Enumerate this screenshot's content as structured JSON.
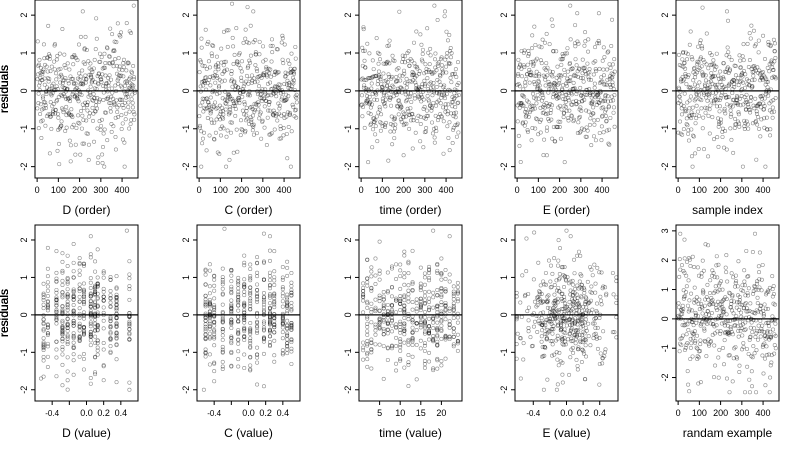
{
  "figure": {
    "ylabel": "residuals",
    "point_color": "#000000",
    "background": "#ffffff"
  },
  "chart_data": [
    {
      "type": "scatter",
      "xlabel": "D (order)",
      "ylabel": "residuals",
      "xlim": [
        -10,
        475
      ],
      "ylim": [
        -2.3,
        2.4
      ],
      "x_ticks": [
        0,
        100,
        200,
        300,
        400
      ],
      "x_tick_labels": [
        "0",
        "100",
        "200",
        "300",
        "400"
      ],
      "y_ticks": [
        -2,
        -1,
        0,
        1,
        2
      ],
      "y_tick_labels": [
        "-2",
        "-1",
        "0",
        "1",
        "2"
      ],
      "reference_line_y": 0,
      "n_points": 460,
      "x_kind": "order",
      "x_range": [
        1,
        460
      ],
      "y_range": [
        -2.0,
        2.3
      ],
      "y_sd": 0.7,
      "notable_points": [
        {
          "x": 215,
          "y": 2.1
        },
        {
          "x": 455,
          "y": 2.25
        },
        {
          "x": 60,
          "y": -1.65
        }
      ]
    },
    {
      "type": "scatter",
      "xlabel": "C (order)",
      "ylabel": "residuals",
      "xlim": [
        -10,
        475
      ],
      "ylim": [
        -2.3,
        2.4
      ],
      "x_ticks": [
        0,
        100,
        200,
        300,
        400
      ],
      "x_tick_labels": [
        "0",
        "100",
        "200",
        "300",
        "400"
      ],
      "y_ticks": [
        -2,
        -1,
        0,
        1,
        2
      ],
      "y_tick_labels": [
        "-2",
        "-1",
        "0",
        "1",
        "2"
      ],
      "reference_line_y": 0,
      "n_points": 460,
      "x_kind": "order",
      "x_range": [
        1,
        460
      ],
      "y_range": [
        -2.0,
        2.3
      ],
      "y_sd": 0.7,
      "notable_points": [
        {
          "x": 155,
          "y": 2.3
        },
        {
          "x": 255,
          "y": 2.1
        },
        {
          "x": 10,
          "y": -2.0
        }
      ]
    },
    {
      "type": "scatter",
      "xlabel": "time (order)",
      "ylabel": "residuals",
      "xlim": [
        -10,
        475
      ],
      "ylim": [
        -2.3,
        2.4
      ],
      "x_ticks": [
        0,
        100,
        200,
        300,
        400
      ],
      "x_tick_labels": [
        "0",
        "100",
        "200",
        "300",
        "400"
      ],
      "y_ticks": [
        -2,
        -1,
        0,
        1,
        2
      ],
      "y_tick_labels": [
        "-2",
        "-1",
        "0",
        "1",
        "2"
      ],
      "reference_line_y": 0,
      "n_points": 460,
      "x_kind": "order",
      "x_range": [
        1,
        460
      ],
      "y_range": [
        -2.0,
        2.3
      ],
      "y_sd": 0.7,
      "notable_points": [
        {
          "x": 345,
          "y": 2.25
        },
        {
          "x": 395,
          "y": 2.1
        },
        {
          "x": 200,
          "y": -1.7
        }
      ]
    },
    {
      "type": "scatter",
      "xlabel": "E (order)",
      "ylabel": "residuals",
      "xlim": [
        -10,
        475
      ],
      "ylim": [
        -2.3,
        2.4
      ],
      "x_ticks": [
        0,
        100,
        200,
        300,
        400
      ],
      "x_tick_labels": [
        "0",
        "100",
        "200",
        "300",
        "400"
      ],
      "y_ticks": [
        -2,
        -1,
        0,
        1,
        2
      ],
      "y_tick_labels": [
        "-2",
        "-1",
        "0",
        "1",
        "2"
      ],
      "reference_line_y": 0,
      "n_points": 460,
      "x_kind": "order",
      "x_range": [
        1,
        460
      ],
      "y_range": [
        -2.0,
        2.3
      ],
      "y_sd": 0.7,
      "notable_points": [
        {
          "x": 250,
          "y": 2.25
        },
        {
          "x": 385,
          "y": 2.05
        },
        {
          "x": 140,
          "y": -1.7
        }
      ]
    },
    {
      "type": "scatter",
      "xlabel": "sample index",
      "ylabel": "residuals",
      "xlim": [
        -10,
        475
      ],
      "ylim": [
        -2.3,
        2.4
      ],
      "x_ticks": [
        0,
        100,
        200,
        300,
        400
      ],
      "x_tick_labels": [
        "0",
        "100",
        "200",
        "300",
        "400"
      ],
      "y_ticks": [
        -2,
        -1,
        0,
        1,
        2
      ],
      "y_tick_labels": [
        "-2",
        "-1",
        "0",
        "1",
        "2"
      ],
      "reference_line_y": 0,
      "n_points": 460,
      "x_kind": "order",
      "x_range": [
        1,
        460
      ],
      "y_range": [
        -2.0,
        2.3
      ],
      "y_sd": 0.7,
      "notable_points": [
        {
          "x": 115,
          "y": 2.2
        },
        {
          "x": 230,
          "y": 2.1
        },
        {
          "x": 80,
          "y": -1.65
        }
      ]
    },
    {
      "type": "scatter",
      "xlabel": "D (value)",
      "ylabel": "residuals",
      "xlim": [
        -0.6,
        0.6
      ],
      "ylim": [
        -2.3,
        2.4
      ],
      "x_ticks": [
        -0.4,
        -0.2,
        0.0,
        0.2,
        0.4
      ],
      "x_tick_labels": [
        "-0.4",
        "",
        "0.0",
        "0.2",
        "0.4"
      ],
      "y_ticks": [
        -2,
        -1,
        0,
        1,
        2
      ],
      "y_tick_labels": [
        "-2",
        "-1",
        "0",
        "1",
        "2"
      ],
      "reference_line_y": 0,
      "n_points": 460,
      "x_kind": "levels",
      "x_levels": [
        -0.5,
        -0.45,
        -0.35,
        -0.28,
        -0.22,
        -0.15,
        -0.08,
        -0.03,
        0.05,
        0.1,
        0.13,
        0.2,
        0.28,
        0.35,
        0.5
      ],
      "y_range": [
        -2.0,
        2.3
      ],
      "y_sd": 0.7,
      "notable_points": [
        {
          "x": 0.05,
          "y": 2.1
        },
        {
          "x": 0.47,
          "y": 2.25
        },
        {
          "x": -0.53,
          "y": -1.7
        }
      ]
    },
    {
      "type": "scatter",
      "xlabel": "C (value)",
      "ylabel": "residuals",
      "xlim": [
        -0.6,
        0.6
      ],
      "ylim": [
        -2.3,
        2.4
      ],
      "x_ticks": [
        -0.4,
        -0.2,
        0.0,
        0.2,
        0.4
      ],
      "x_tick_labels": [
        "-0.4",
        "",
        "0.0",
        "0.2",
        "0.4"
      ],
      "y_ticks": [
        -2,
        -1,
        0,
        1,
        2
      ],
      "y_tick_labels": [
        "-2",
        "-1",
        "0",
        "1",
        "2"
      ],
      "reference_line_y": 0,
      "n_points": 460,
      "x_kind": "levels",
      "x_levels": [
        -0.5,
        -0.45,
        -0.4,
        -0.3,
        -0.2,
        -0.12,
        -0.05,
        0.02,
        0.1,
        0.18,
        0.25,
        0.3,
        0.4,
        0.45,
        0.5
      ],
      "y_range": [
        -2.0,
        2.3
      ],
      "y_sd": 0.7,
      "notable_points": [
        {
          "x": -0.28,
          "y": 2.3
        },
        {
          "x": 0.25,
          "y": 2.1
        },
        {
          "x": -0.52,
          "y": -2.0
        }
      ]
    },
    {
      "type": "scatter",
      "xlabel": "time (value)",
      "ylabel": "residuals",
      "xlim": [
        0,
        25
      ],
      "ylim": [
        -2.3,
        2.4
      ],
      "x_ticks": [
        5,
        10,
        15,
        20
      ],
      "x_tick_labels": [
        "5",
        "10",
        "15",
        "20"
      ],
      "y_ticks": [
        -2,
        -1,
        0,
        1,
        2
      ],
      "y_tick_labels": [
        "-2",
        "-1",
        "0",
        "1",
        "2"
      ],
      "reference_line_y": 0,
      "n_points": 460,
      "x_kind": "levels",
      "x_levels": [
        1,
        2,
        3,
        4,
        5,
        6,
        7,
        8,
        9,
        10,
        11,
        12,
        13,
        14,
        15,
        16,
        17,
        18,
        19,
        20,
        21,
        22,
        23,
        24
      ],
      "y_range": [
        -2.0,
        2.3
      ],
      "y_sd": 0.7,
      "notable_points": [
        {
          "x": 18,
          "y": 2.25
        },
        {
          "x": 22,
          "y": 2.1
        },
        {
          "x": 12,
          "y": -1.9
        }
      ]
    },
    {
      "type": "scatter",
      "xlabel": "E (value)",
      "ylabel": "residuals",
      "xlim": [
        -0.62,
        0.62
      ],
      "ylim": [
        -2.3,
        2.4
      ],
      "x_ticks": [
        -0.4,
        -0.2,
        0.0,
        0.2,
        0.4
      ],
      "x_tick_labels": [
        "-0.4",
        "",
        "0.0",
        "0.2",
        "0.4"
      ],
      "y_ticks": [
        -2,
        -1,
        0,
        1,
        2
      ],
      "y_tick_labels": [
        "-2",
        "-1",
        "0",
        "1",
        "2"
      ],
      "reference_line_y": 0,
      "n_points": 460,
      "x_kind": "continuous",
      "x_range": [
        -0.6,
        0.6
      ],
      "y_range": [
        -2.0,
        2.3
      ],
      "y_sd": 0.7,
      "notable_points": [
        {
          "x": 0.0,
          "y": 2.25
        },
        {
          "x": 0.05,
          "y": 2.1
        },
        {
          "x": -0.55,
          "y": -1.7
        }
      ]
    },
    {
      "type": "scatter",
      "xlabel": "randam example",
      "ylabel": "residuals",
      "xlim": [
        -10,
        475
      ],
      "ylim": [
        -2.8,
        3.2
      ],
      "x_ticks": [
        0,
        100,
        200,
        300,
        400
      ],
      "x_tick_labels": [
        "0",
        "100",
        "200",
        "300",
        "400"
      ],
      "y_ticks": [
        -2,
        -1,
        0,
        1,
        2,
        3
      ],
      "y_tick_labels": [
        "-2",
        "-1",
        "0",
        "1",
        "2",
        "3"
      ],
      "reference_line_y": 0,
      "n_points": 460,
      "x_kind": "order",
      "x_range": [
        1,
        460
      ],
      "y_range": [
        -2.5,
        2.9
      ],
      "y_sd": 1.0,
      "notable_points": [
        {
          "x": 10,
          "y": 2.9
        },
        {
          "x": 30,
          "y": 2.7
        },
        {
          "x": 315,
          "y": -2.5
        }
      ]
    }
  ]
}
